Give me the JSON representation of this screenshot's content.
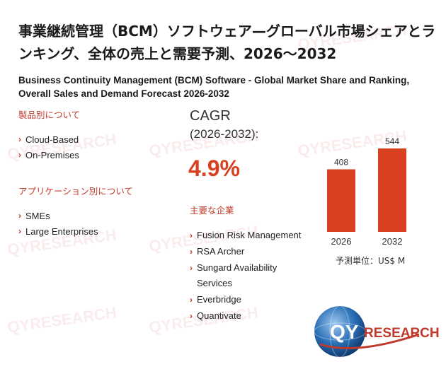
{
  "title_jp": "事業継続管理（BCM）ソフトウェア—グローバル市場シェアとランキング、全体の売上と需要予測、2026～2032",
  "title_en": "Business Continuity Management (BCM) Software - Global Market Share and Ranking, Overall Sales and Demand Forecast 2026-2032",
  "product_section": {
    "heading": "製品別について",
    "items": [
      "Cloud-Based",
      "On-Premises"
    ]
  },
  "application_section": {
    "heading": "アプリケーション別について",
    "items": [
      "SMEs",
      "Large Enterprises"
    ]
  },
  "cagr": {
    "label": "CAGR",
    "period": "(2026-2032):",
    "value": "4.9%"
  },
  "companies_section": {
    "heading": "主要な企業",
    "items": [
      "Fusion Risk Management",
      "RSA Archer",
      "Sungard Availability Services",
      "Everbridge",
      "Quantivate"
    ]
  },
  "chart_data": {
    "type": "bar",
    "categories": [
      "2026",
      "2032"
    ],
    "values": [
      408,
      544
    ],
    "bar_color": "#d9401f"
  },
  "unit_label": "予測単位：US$ M",
  "logo": {
    "text_q": "QY",
    "text_rest": "RESEARCH",
    "brand_color": "#c0392b",
    "globe_color": "#2a6fb5"
  },
  "watermark": "QYRESEARCH"
}
